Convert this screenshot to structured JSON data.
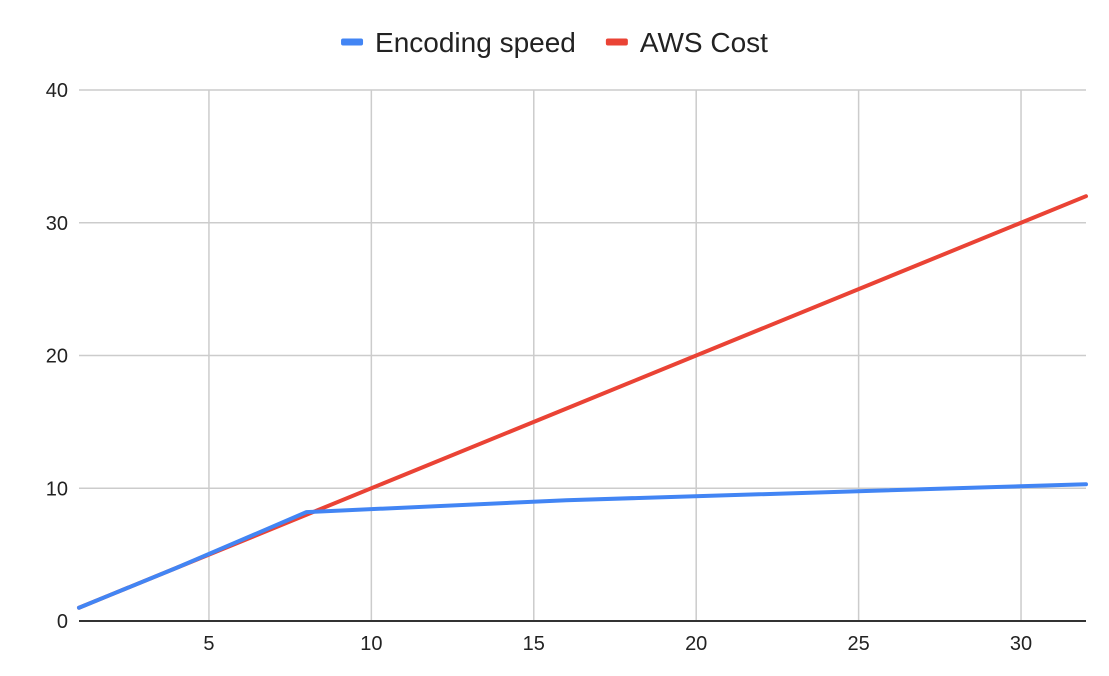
{
  "chart_data": {
    "type": "line",
    "title": "",
    "xlabel": "",
    "ylabel": "",
    "xlim": [
      1,
      32
    ],
    "ylim": [
      0,
      40
    ],
    "x_ticks": [
      5,
      10,
      15,
      20,
      25,
      30
    ],
    "y_ticks": [
      0,
      10,
      20,
      30,
      40
    ],
    "grid": true,
    "legend_position": "top",
    "series": [
      {
        "name": "Encoding speed",
        "color": "#4285f4",
        "x": [
          1,
          2,
          4,
          8,
          16,
          32
        ],
        "y": [
          1,
          2,
          4,
          8.2,
          9.1,
          10.3
        ]
      },
      {
        "name": "AWS Cost",
        "color": "#ea4335",
        "x": [
          1,
          2,
          4,
          8,
          16,
          32
        ],
        "y": [
          1,
          2,
          4,
          8,
          16,
          32
        ]
      }
    ]
  }
}
